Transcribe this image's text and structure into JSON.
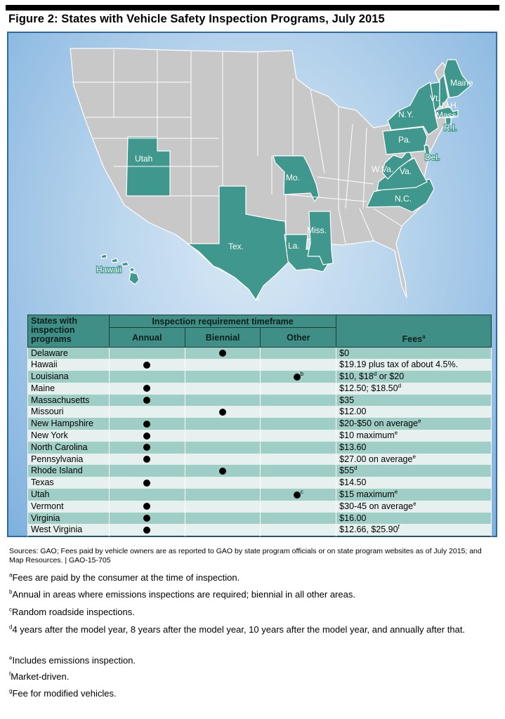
{
  "figure": {
    "title": "Figure 2: States with Vehicle Safety Inspection Programs, July 2015"
  },
  "map": {
    "colors": {
      "highlight": "#3f978e",
      "other": "#c8c8c8",
      "ocean": "#a9cbea",
      "border": "#ffffff"
    },
    "labels": {
      "maine": "Maine",
      "vt": "Vt.",
      "nh": "N.H.",
      "ny": "N.Y.",
      "mass": "Mass.",
      "ri": "R.I.",
      "pa": "Pa.",
      "del": "Del.",
      "wva": "W.Va.",
      "va": "Va.",
      "nc": "N.C.",
      "utah": "Utah",
      "mo": "Mo.",
      "tex": "Tex.",
      "la": "La.",
      "miss": "Miss.",
      "hawaii": "Hawaii"
    }
  },
  "table": {
    "headers": {
      "states": "States with inspection programs",
      "timeframe": "Inspection requirement timeframe",
      "annual": "Annual",
      "biennial": "Biennial",
      "other": "Other",
      "fees": "Fees",
      "fees_note": "a"
    },
    "rows": [
      {
        "state": "Delaware",
        "annual": false,
        "biennial": true,
        "other": false,
        "other_note": "",
        "fee": "$0",
        "fee_sup": "",
        "fee_after": ""
      },
      {
        "state": "Hawaii",
        "annual": true,
        "biennial": false,
        "other": false,
        "other_note": "",
        "fee": "$19.19 plus tax of about 4.5%.",
        "fee_sup": "",
        "fee_after": ""
      },
      {
        "state": "Louisiana",
        "annual": false,
        "biennial": false,
        "other": true,
        "other_note": "b",
        "fee": "$10, $18",
        "fee_sup": "d",
        "fee_after": " or $20"
      },
      {
        "state": "Maine",
        "annual": true,
        "biennial": false,
        "other": false,
        "other_note": "",
        "fee": "$12.50; $18.50",
        "fee_sup": "d",
        "fee_after": ""
      },
      {
        "state": "Massachusetts",
        "annual": true,
        "biennial": false,
        "other": false,
        "other_note": "",
        "fee": "$35",
        "fee_sup": "",
        "fee_after": ""
      },
      {
        "state": "Missouri",
        "annual": false,
        "biennial": true,
        "other": false,
        "other_note": "",
        "fee": "$12.00",
        "fee_sup": "",
        "fee_after": ""
      },
      {
        "state": "New Hampshire",
        "annual": true,
        "biennial": false,
        "other": false,
        "other_note": "",
        "fee": "$20-$50 on average",
        "fee_sup": "e",
        "fee_after": ""
      },
      {
        "state": "New York",
        "annual": true,
        "biennial": false,
        "other": false,
        "other_note": "",
        "fee": "$10 maximum",
        "fee_sup": "e",
        "fee_after": ""
      },
      {
        "state": "North Carolina",
        "annual": true,
        "biennial": false,
        "other": false,
        "other_note": "",
        "fee": "$13.60",
        "fee_sup": "",
        "fee_after": ""
      },
      {
        "state": "Pennsylvania",
        "annual": true,
        "biennial": false,
        "other": false,
        "other_note": "",
        "fee": "$27.00 on average",
        "fee_sup": "e",
        "fee_after": ""
      },
      {
        "state": "Rhode Island",
        "annual": false,
        "biennial": true,
        "other": false,
        "other_note": "",
        "fee": "$55",
        "fee_sup": "d",
        "fee_after": ""
      },
      {
        "state": "Texas",
        "annual": true,
        "biennial": false,
        "other": false,
        "other_note": "",
        "fee": "$14.50",
        "fee_sup": "",
        "fee_after": ""
      },
      {
        "state": "Utah",
        "annual": false,
        "biennial": false,
        "other": true,
        "other_note": "c",
        "fee": "$15 maximum",
        "fee_sup": "e",
        "fee_after": ""
      },
      {
        "state": "Vermont",
        "annual": true,
        "biennial": false,
        "other": false,
        "other_note": "",
        "fee": "$30-45 on average",
        "fee_sup": "e",
        "fee_after": ""
      },
      {
        "state": "Virginia",
        "annual": true,
        "biennial": false,
        "other": false,
        "other_note": "",
        "fee": "$16.00",
        "fee_sup": "",
        "fee_after": ""
      },
      {
        "state": "West Virginia",
        "annual": true,
        "biennial": false,
        "other": false,
        "other_note": "",
        "fee": "$12.66, $25.90",
        "fee_sup": "f",
        "fee_after": ""
      }
    ]
  },
  "sources": "Sources: GAO; Fees paid by vehicle owners are as reported to GAO by state program officials or on state program websites as of July 2015; and Map Resources. | GAO-15-705",
  "footnotes": [
    {
      "mark": "a",
      "text": "Fees are paid by the consumer at the time of inspection."
    },
    {
      "mark": "b",
      "text": "Annual in areas where emissions inspections are required; biennial in all other areas."
    },
    {
      "mark": "c",
      "text": "Random roadside inspections."
    },
    {
      "mark": "d",
      "text": "4 years after the model year, 8 years after the model year, 10 years after the model year, and annually after that."
    },
    {
      "mark": "e",
      "text": "Includes emissions inspection."
    },
    {
      "mark": "f",
      "text": "Market-driven."
    },
    {
      "mark": "g",
      "text": "Fee for modified vehicles."
    }
  ]
}
